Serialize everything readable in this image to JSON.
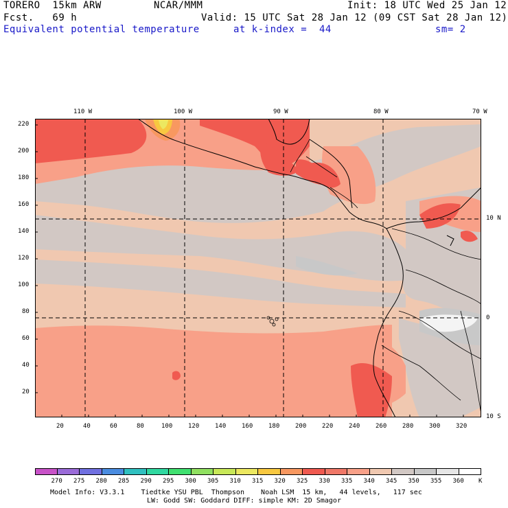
{
  "header": {
    "run": "TORERO  15km ARW",
    "org": "NCAR/MMM",
    "init": "Init: 18 UTC Wed 25 Jan 12",
    "fcst": "Fcst.   69 h",
    "valid": "Valid: 15 UTC Sat 28 Jan 12 (09 CST Sat 28 Jan 12)",
    "field": "Equivalent potential temperature",
    "level": "at k-index =  44",
    "smooth": "sm= 2"
  },
  "map": {
    "top_lon_labels": [
      "110 W",
      "100 W",
      "90 W",
      "80 W",
      "70 W"
    ],
    "right_lat_labels": [
      "10 N",
      "0",
      "10 S"
    ],
    "left_ticks": [
      "220",
      "200",
      "180",
      "160",
      "140",
      "120",
      "100",
      "80",
      "60",
      "40",
      "20"
    ],
    "bottom_ticks": [
      "20",
      "40",
      "60",
      "80",
      "100",
      "120",
      "140",
      "160",
      "180",
      "200",
      "220",
      "240",
      "260",
      "280",
      "300",
      "320"
    ]
  },
  "colorbar": {
    "labels": [
      "270",
      "275",
      "280",
      "285",
      "290",
      "295",
      "300",
      "305",
      "310",
      "315",
      "320",
      "325",
      "330",
      "335",
      "340",
      "345",
      "350",
      "355",
      "360",
      "K"
    ],
    "colors": [
      "#c852c8",
      "#9a6bd8",
      "#7070e0",
      "#4a8ce0",
      "#30c0c0",
      "#30d8a0",
      "#40e070",
      "#90e060",
      "#c8e858",
      "#ece860",
      "#f8c840",
      "#f89860",
      "#f05a50",
      "#f07868",
      "#f8a088",
      "#f0c8b0",
      "#d2c8c4",
      "#c8c8c8",
      "#e6e6e6",
      "#ffffff"
    ]
  },
  "footer": {
    "line1": "Model Info: V3.3.1    Tiedtke YSU PBL  Thompson    Noah LSM  15 km,   44 levels,   117 sec",
    "line2": "LW: Godd SW: Goddard DIFF: simple KM: 2D Smagor"
  }
}
